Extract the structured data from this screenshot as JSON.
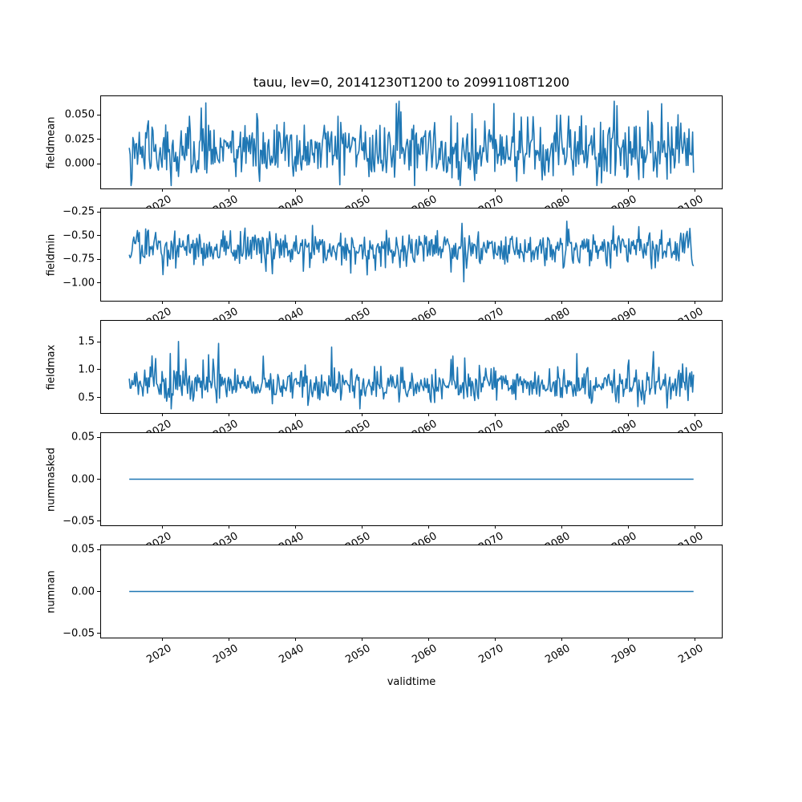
{
  "figure": {
    "title": "tauu, lev=0, 20141230T1200 to 20991108T1200",
    "xlabel": "validtime",
    "line_color": "#1f77b4",
    "spine_color": "#000000",
    "text_color": "#000000",
    "background": "#ffffff"
  },
  "chart_data": {
    "type": "line",
    "title": "tauu, lev=0, 20141230T1200 to 20991108T1200",
    "xlabel": "validtime",
    "grid": false,
    "legend": "none",
    "line_color": "#1f77b4",
    "x_domain": {
      "start_label": "20141230T1200",
      "end_label": "20991108T1200",
      "start_year": 2014.99,
      "end_year": 2099.85
    },
    "xlim": [
      2010.75,
      2104.1
    ],
    "xticks": [
      2020,
      2030,
      2040,
      2050,
      2060,
      2070,
      2080,
      2090,
      2100
    ],
    "xtick_labels": [
      "2020",
      "2030",
      "2040",
      "2050",
      "2060",
      "2070",
      "2080",
      "2090",
      "2100"
    ],
    "xtick_rotation_deg": 30,
    "n_points": 620,
    "subplots": [
      {
        "ylabel": "fieldmean",
        "ylim": [
          -0.025,
          0.069
        ],
        "yticks": [
          0.05,
          0.025,
          0.0
        ],
        "ytick_labels": [
          "0.050",
          "0.025",
          "0.000"
        ],
        "series": {
          "name": "fieldmean",
          "kind": "noisy",
          "approx_mean": 0.013,
          "approx_min": -0.022,
          "approx_max": 0.064,
          "seed": 101,
          "mean": 0.013,
          "std": 0.015,
          "spike_prob": 0.05,
          "spike_base": 0.02,
          "spike_var": 0.02,
          "spike_sign": 1,
          "clip": [
            -0.022,
            0.064
          ]
        }
      },
      {
        "ylabel": "fieldmin",
        "ylim": [
          -1.186,
          -0.215
        ],
        "yticks": [
          -0.25,
          -0.5,
          -0.75,
          -1.0
        ],
        "ytick_labels": [
          "−0.25",
          "−0.50",
          "−0.75",
          "−1.00"
        ],
        "series": {
          "name": "fieldmin",
          "kind": "noisy",
          "approx_mean": -0.63,
          "approx_min": -1.17,
          "approx_max": -0.31,
          "seed": 202,
          "mean": -0.63,
          "std": 0.095,
          "spike_prob": 0.012,
          "spike_base": 0.15,
          "spike_var": 0.15,
          "spike_sign": -1,
          "clip": [
            -1.17,
            -0.31
          ]
        }
      },
      {
        "ylabel": "fieldmax",
        "ylim": [
          0.225,
          1.875
        ],
        "yticks": [
          1.5,
          1.0,
          0.5
        ],
        "ytick_labels": [
          "1.5",
          "1.0",
          "0.5"
        ],
        "series": {
          "name": "fieldmax",
          "kind": "noisy",
          "approx_mean": 0.72,
          "approx_min": 0.3,
          "approx_max": 1.8,
          "seed": 303,
          "mean": 0.72,
          "std": 0.14,
          "spike_prob": 0.04,
          "spike_base": 0.25,
          "spike_var": 0.45,
          "spike_sign": 1,
          "clip": [
            0.3,
            1.8
          ]
        }
      },
      {
        "ylabel": "nummasked",
        "ylim": [
          -0.055,
          0.055
        ],
        "yticks": [
          0.05,
          0.0,
          -0.05
        ],
        "ytick_labels": [
          "0.05",
          "0.00",
          "−0.05"
        ],
        "series": {
          "name": "nummasked",
          "kind": "constant",
          "value": 0.0,
          "approx_mean": 0.0,
          "approx_min": 0.0,
          "approx_max": 0.0
        }
      },
      {
        "ylabel": "numnan",
        "ylim": [
          -0.055,
          0.055
        ],
        "yticks": [
          0.05,
          0.0,
          -0.05
        ],
        "ytick_labels": [
          "0.05",
          "0.00",
          "−0.05"
        ],
        "series": {
          "name": "numnan",
          "kind": "constant",
          "value": 0.0,
          "approx_mean": 0.0,
          "approx_min": 0.0,
          "approx_max": 0.0
        }
      }
    ]
  }
}
